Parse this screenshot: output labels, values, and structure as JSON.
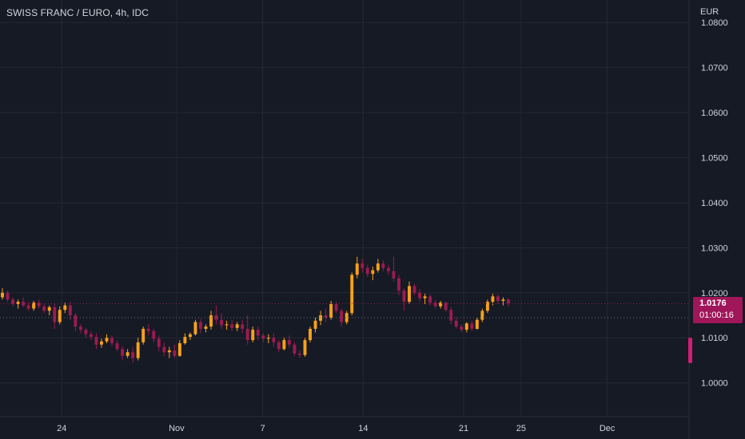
{
  "title": "SWISS FRANC / EURO, 4h, IDC",
  "currency": "EUR",
  "last_price": "1.0176",
  "countdown": "01:00:16",
  "colors": {
    "background": "#161a25",
    "up": "#f7a21b",
    "down": "#9b1b52",
    "grid": "#242832",
    "text": "#d1d4dc",
    "badge": "#a0165a"
  },
  "chart_data": {
    "type": "candlestick",
    "symbol": "SWISS FRANC / EURO",
    "interval": "4h",
    "source": "IDC",
    "y_tick_labels": [
      "1.0800",
      "1.0700",
      "1.0600",
      "1.0500",
      "1.0400",
      "1.0300",
      "1.0200",
      "1.0100",
      "1.0000"
    ],
    "y_ticks": [
      1.08,
      1.07,
      1.06,
      1.05,
      1.04,
      1.03,
      1.02,
      1.01,
      1.0
    ],
    "ylim": [
      0.9925,
      1.085
    ],
    "x_tick_labels": [
      {
        "label": "24",
        "day": 0
      },
      {
        "label": "Nov",
        "day": 8
      },
      {
        "label": "7",
        "day": 14
      },
      {
        "label": "14",
        "day": 21
      },
      {
        "label": "21",
        "day": 28
      },
      {
        "label": "25",
        "day": 32
      },
      {
        "label": "Dec",
        "day": 38
      }
    ],
    "x_day_range": [
      -4.3,
      43.7
    ],
    "last_price": 1.0176,
    "ohlc": [
      [
        1.019,
        1.021,
        1.0185,
        1.02
      ],
      [
        1.02,
        1.0205,
        1.018,
        1.0185
      ],
      [
        1.0185,
        1.019,
        1.017,
        1.0175
      ],
      [
        1.0175,
        1.0185,
        1.0165,
        1.018
      ],
      [
        1.018,
        1.019,
        1.0168,
        1.0172
      ],
      [
        1.0172,
        1.0178,
        1.016,
        1.0165
      ],
      [
        1.0165,
        1.0182,
        1.016,
        1.0178
      ],
      [
        1.0178,
        1.0185,
        1.0165,
        1.017
      ],
      [
        1.017,
        1.0175,
        1.0155,
        1.016
      ],
      [
        1.016,
        1.0172,
        1.015,
        1.0168
      ],
      [
        1.0168,
        1.0175,
        1.012,
        1.0135
      ],
      [
        1.0135,
        1.017,
        1.013,
        1.0162
      ],
      [
        1.0162,
        1.0178,
        1.0155,
        1.0172
      ],
      [
        1.0172,
        1.018,
        1.014,
        1.015
      ],
      [
        1.015,
        1.0155,
        1.0115,
        1.0125
      ],
      [
        1.0125,
        1.013,
        1.011,
        1.0118
      ],
      [
        1.0118,
        1.0122,
        1.01,
        1.0108
      ],
      [
        1.0108,
        1.0115,
        1.0095,
        1.0102
      ],
      [
        1.0102,
        1.011,
        1.0075,
        1.0085
      ],
      [
        1.0085,
        1.0098,
        1.0078,
        1.0092
      ],
      [
        1.0092,
        1.0108,
        1.0088,
        1.01
      ],
      [
        1.01,
        1.0105,
        1.0082,
        1.0088
      ],
      [
        1.0088,
        1.0095,
        1.007,
        1.0075
      ],
      [
        1.0075,
        1.0082,
        1.005,
        1.006
      ],
      [
        1.006,
        1.0075,
        1.0055,
        1.0068
      ],
      [
        1.0068,
        1.008,
        1.0045,
        1.0055
      ],
      [
        1.0055,
        1.01,
        1.005,
        1.009
      ],
      [
        1.009,
        1.0125,
        1.0085,
        1.012
      ],
      [
        1.012,
        1.013,
        1.0105,
        1.0115
      ],
      [
        1.0115,
        1.012,
        1.009,
        1.0098
      ],
      [
        1.0098,
        1.0105,
        1.007,
        1.008
      ],
      [
        1.008,
        1.009,
        1.006,
        1.0068
      ],
      [
        1.0068,
        1.008,
        1.0055,
        1.0072
      ],
      [
        1.0072,
        1.0085,
        1.0055,
        1.006
      ],
      [
        1.006,
        1.0095,
        1.0058,
        1.0088
      ],
      [
        1.0088,
        1.011,
        1.0085,
        1.0102
      ],
      [
        1.0102,
        1.0112,
        1.0095,
        1.0108
      ],
      [
        1.0108,
        1.014,
        1.0105,
        1.0135
      ],
      [
        1.0135,
        1.0142,
        1.011,
        1.012
      ],
      [
        1.012,
        1.013,
        1.0112,
        1.0125
      ],
      [
        1.0125,
        1.016,
        1.0118,
        1.015
      ],
      [
        1.015,
        1.0172,
        1.013,
        1.014
      ],
      [
        1.014,
        1.0155,
        1.012,
        1.0128
      ],
      [
        1.0128,
        1.0138,
        1.0118,
        1.013
      ],
      [
        1.013,
        1.014,
        1.0115,
        1.0122
      ],
      [
        1.0122,
        1.0135,
        1.0115,
        1.013
      ],
      [
        1.013,
        1.014,
        1.011,
        1.012
      ],
      [
        1.012,
        1.015,
        1.0085,
        1.0095
      ],
      [
        1.0095,
        1.0125,
        1.009,
        1.0118
      ],
      [
        1.0118,
        1.0125,
        1.0095,
        1.0105
      ],
      [
        1.0105,
        1.011,
        1.009,
        1.0098
      ],
      [
        1.0098,
        1.0108,
        1.0088,
        1.01
      ],
      [
        1.01,
        1.011,
        1.008,
        1.009
      ],
      [
        1.009,
        1.0095,
        1.0068,
        1.0075
      ],
      [
        1.0075,
        1.01,
        1.0072,
        1.0095
      ],
      [
        1.0095,
        1.0105,
        1.0078,
        1.0085
      ],
      [
        1.0085,
        1.009,
        1.006,
        1.0065
      ],
      [
        1.0065,
        1.0072,
        1.0055,
        1.0062
      ],
      [
        1.0062,
        1.01,
        1.0058,
        1.0095
      ],
      [
        1.0095,
        1.0125,
        1.009,
        1.012
      ],
      [
        1.012,
        1.0145,
        1.0112,
        1.0138
      ],
      [
        1.0138,
        1.016,
        1.0128,
        1.015
      ],
      [
        1.015,
        1.0165,
        1.0135,
        1.0145
      ],
      [
        1.0145,
        1.0182,
        1.014,
        1.0175
      ],
      [
        1.0175,
        1.018,
        1.0155,
        1.016
      ],
      [
        1.016,
        1.0165,
        1.0125,
        1.0135
      ],
      [
        1.0135,
        1.016,
        1.013,
        1.0155
      ],
      [
        1.0155,
        1.0245,
        1.015,
        1.024
      ],
      [
        1.024,
        1.028,
        1.0232,
        1.0265
      ],
      [
        1.0265,
        1.0275,
        1.0245,
        1.0255
      ],
      [
        1.0255,
        1.0262,
        1.0235,
        1.0242
      ],
      [
        1.0242,
        1.0258,
        1.0228,
        1.025
      ],
      [
        1.025,
        1.0275,
        1.0245,
        1.0265
      ],
      [
        1.0265,
        1.0272,
        1.0248,
        1.0255
      ],
      [
        1.0255,
        1.0262,
        1.024,
        1.0248
      ],
      [
        1.0248,
        1.028,
        1.0225,
        1.0232
      ],
      [
        1.0232,
        1.024,
        1.0195,
        1.0205
      ],
      [
        1.0205,
        1.021,
        1.016,
        1.018
      ],
      [
        1.018,
        1.0225,
        1.0175,
        1.0215
      ],
      [
        1.0215,
        1.022,
        1.0195,
        1.02
      ],
      [
        1.02,
        1.0208,
        1.018,
        1.0188
      ],
      [
        1.0188,
        1.0198,
        1.0175,
        1.0192
      ],
      [
        1.0192,
        1.0196,
        1.0172,
        1.0178
      ],
      [
        1.0178,
        1.0184,
        1.0165,
        1.017
      ],
      [
        1.017,
        1.0182,
        1.0165,
        1.0178
      ],
      [
        1.0178,
        1.018,
        1.0158,
        1.0162
      ],
      [
        1.0162,
        1.0168,
        1.013,
        1.0138
      ],
      [
        1.0138,
        1.0145,
        1.012,
        1.0125
      ],
      [
        1.0125,
        1.013,
        1.0112,
        1.0118
      ],
      [
        1.0118,
        1.0135,
        1.0112,
        1.0132
      ],
      [
        1.0132,
        1.0138,
        1.0115,
        1.012
      ],
      [
        1.012,
        1.0145,
        1.0118,
        1.014
      ],
      [
        1.014,
        1.0165,
        1.0135,
        1.016
      ],
      [
        1.016,
        1.0185,
        1.0155,
        1.018
      ],
      [
        1.018,
        1.0198,
        1.0172,
        1.0192
      ],
      [
        1.0192,
        1.0196,
        1.0175,
        1.0182
      ],
      [
        1.0182,
        1.019,
        1.0172,
        1.0185
      ],
      [
        1.0185,
        1.0188,
        1.017,
        1.0176
      ]
    ]
  }
}
